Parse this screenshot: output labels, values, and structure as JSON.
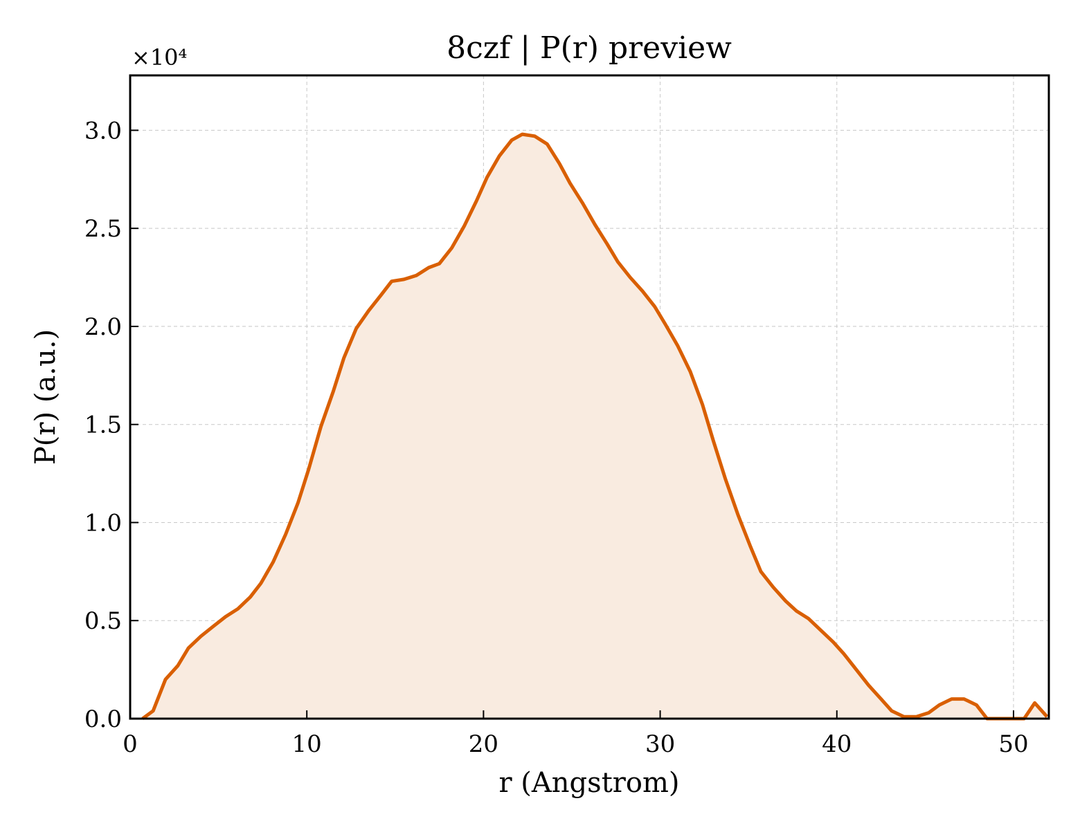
{
  "chart_data": {
    "type": "area",
    "title": "8czf | P(r) preview",
    "xlabel": "r (Angstrom)",
    "ylabel": "P(r) (a.u.)",
    "y_offset_label": "×10⁴",
    "y_scale": 10000,
    "xlim": [
      0,
      52
    ],
    "ylim": [
      0,
      32800
    ],
    "xticks": [
      0,
      10,
      20,
      30,
      40,
      50
    ],
    "yticks": [
      0,
      5000,
      10000,
      15000,
      20000,
      25000,
      30000
    ],
    "ytick_labels": [
      "0.0",
      "0.5",
      "1.0",
      "1.5",
      "2.0",
      "2.5",
      "3.0"
    ],
    "grid": true,
    "line_color": "#d95f02",
    "fill_color": "#f9ebe0",
    "series": [
      {
        "x": [
          0.7,
          1.3,
          2.0,
          2.7,
          3.3,
          4.0,
          4.7,
          5.4,
          6.1,
          6.8,
          7.4,
          8.1,
          8.8,
          9.5,
          10.1,
          10.8,
          11.5,
          12.1,
          12.8,
          13.5,
          14.2,
          14.8,
          15.5,
          16.2,
          16.9,
          17.5,
          18.2,
          18.9,
          19.6,
          20.2,
          20.9,
          21.6,
          22.2,
          22.9,
          23.6,
          24.3,
          24.9,
          25.6,
          26.3,
          27.0,
          27.6,
          28.3,
          29.0,
          29.7,
          30.3,
          31.0,
          31.7,
          32.4,
          33.0,
          33.7,
          34.4,
          35.1,
          35.7,
          36.4,
          37.1,
          37.7,
          38.4,
          39.1,
          39.8,
          40.4,
          41.1,
          41.8,
          42.5,
          43.1,
          43.8,
          44.5,
          45.2,
          45.8,
          46.5,
          47.2,
          47.9,
          48.5,
          49.2,
          49.9,
          50.6,
          51.2,
          51.9
        ],
        "y": [
          0,
          400,
          2000,
          2700,
          3600,
          4200,
          4700,
          5200,
          5600,
          6200,
          6900,
          8000,
          9400,
          11000,
          12700,
          14900,
          16700,
          18400,
          19900,
          20800,
          21600,
          22300,
          22400,
          22600,
          23000,
          23200,
          24000,
          25100,
          26400,
          27600,
          28700,
          29500,
          29800,
          29700,
          29300,
          28300,
          27300,
          26300,
          25200,
          24200,
          23300,
          22500,
          21800,
          21000,
          20100,
          19000,
          17700,
          16000,
          14200,
          12200,
          10400,
          8800,
          7500,
          6700,
          6000,
          5500,
          5100,
          4500,
          3900,
          3300,
          2500,
          1700,
          1000,
          400,
          100,
          100,
          300,
          700,
          1000,
          1000,
          700,
          0,
          0,
          0,
          0,
          800,
          100
        ]
      }
    ]
  }
}
